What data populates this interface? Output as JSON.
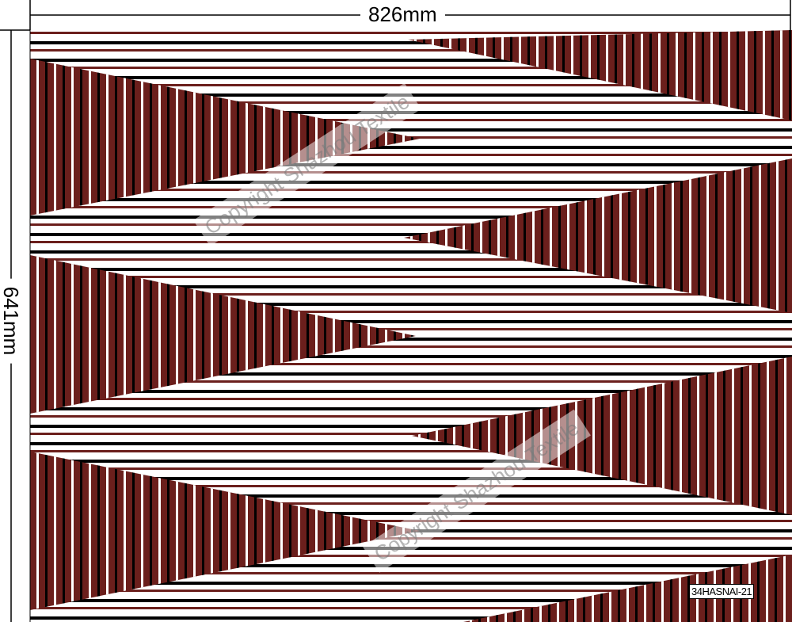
{
  "dimensions": {
    "width_label": "826mm",
    "height_label": "641mm"
  },
  "watermarks": [
    "Copyright Shazhou Textile",
    "Copyright Shazhou Textile"
  ],
  "design_code": "34HASNAI-21",
  "colors": {
    "background": "#ffffff",
    "maroon": "#6b1f1c",
    "stripe_black": "#000000"
  }
}
